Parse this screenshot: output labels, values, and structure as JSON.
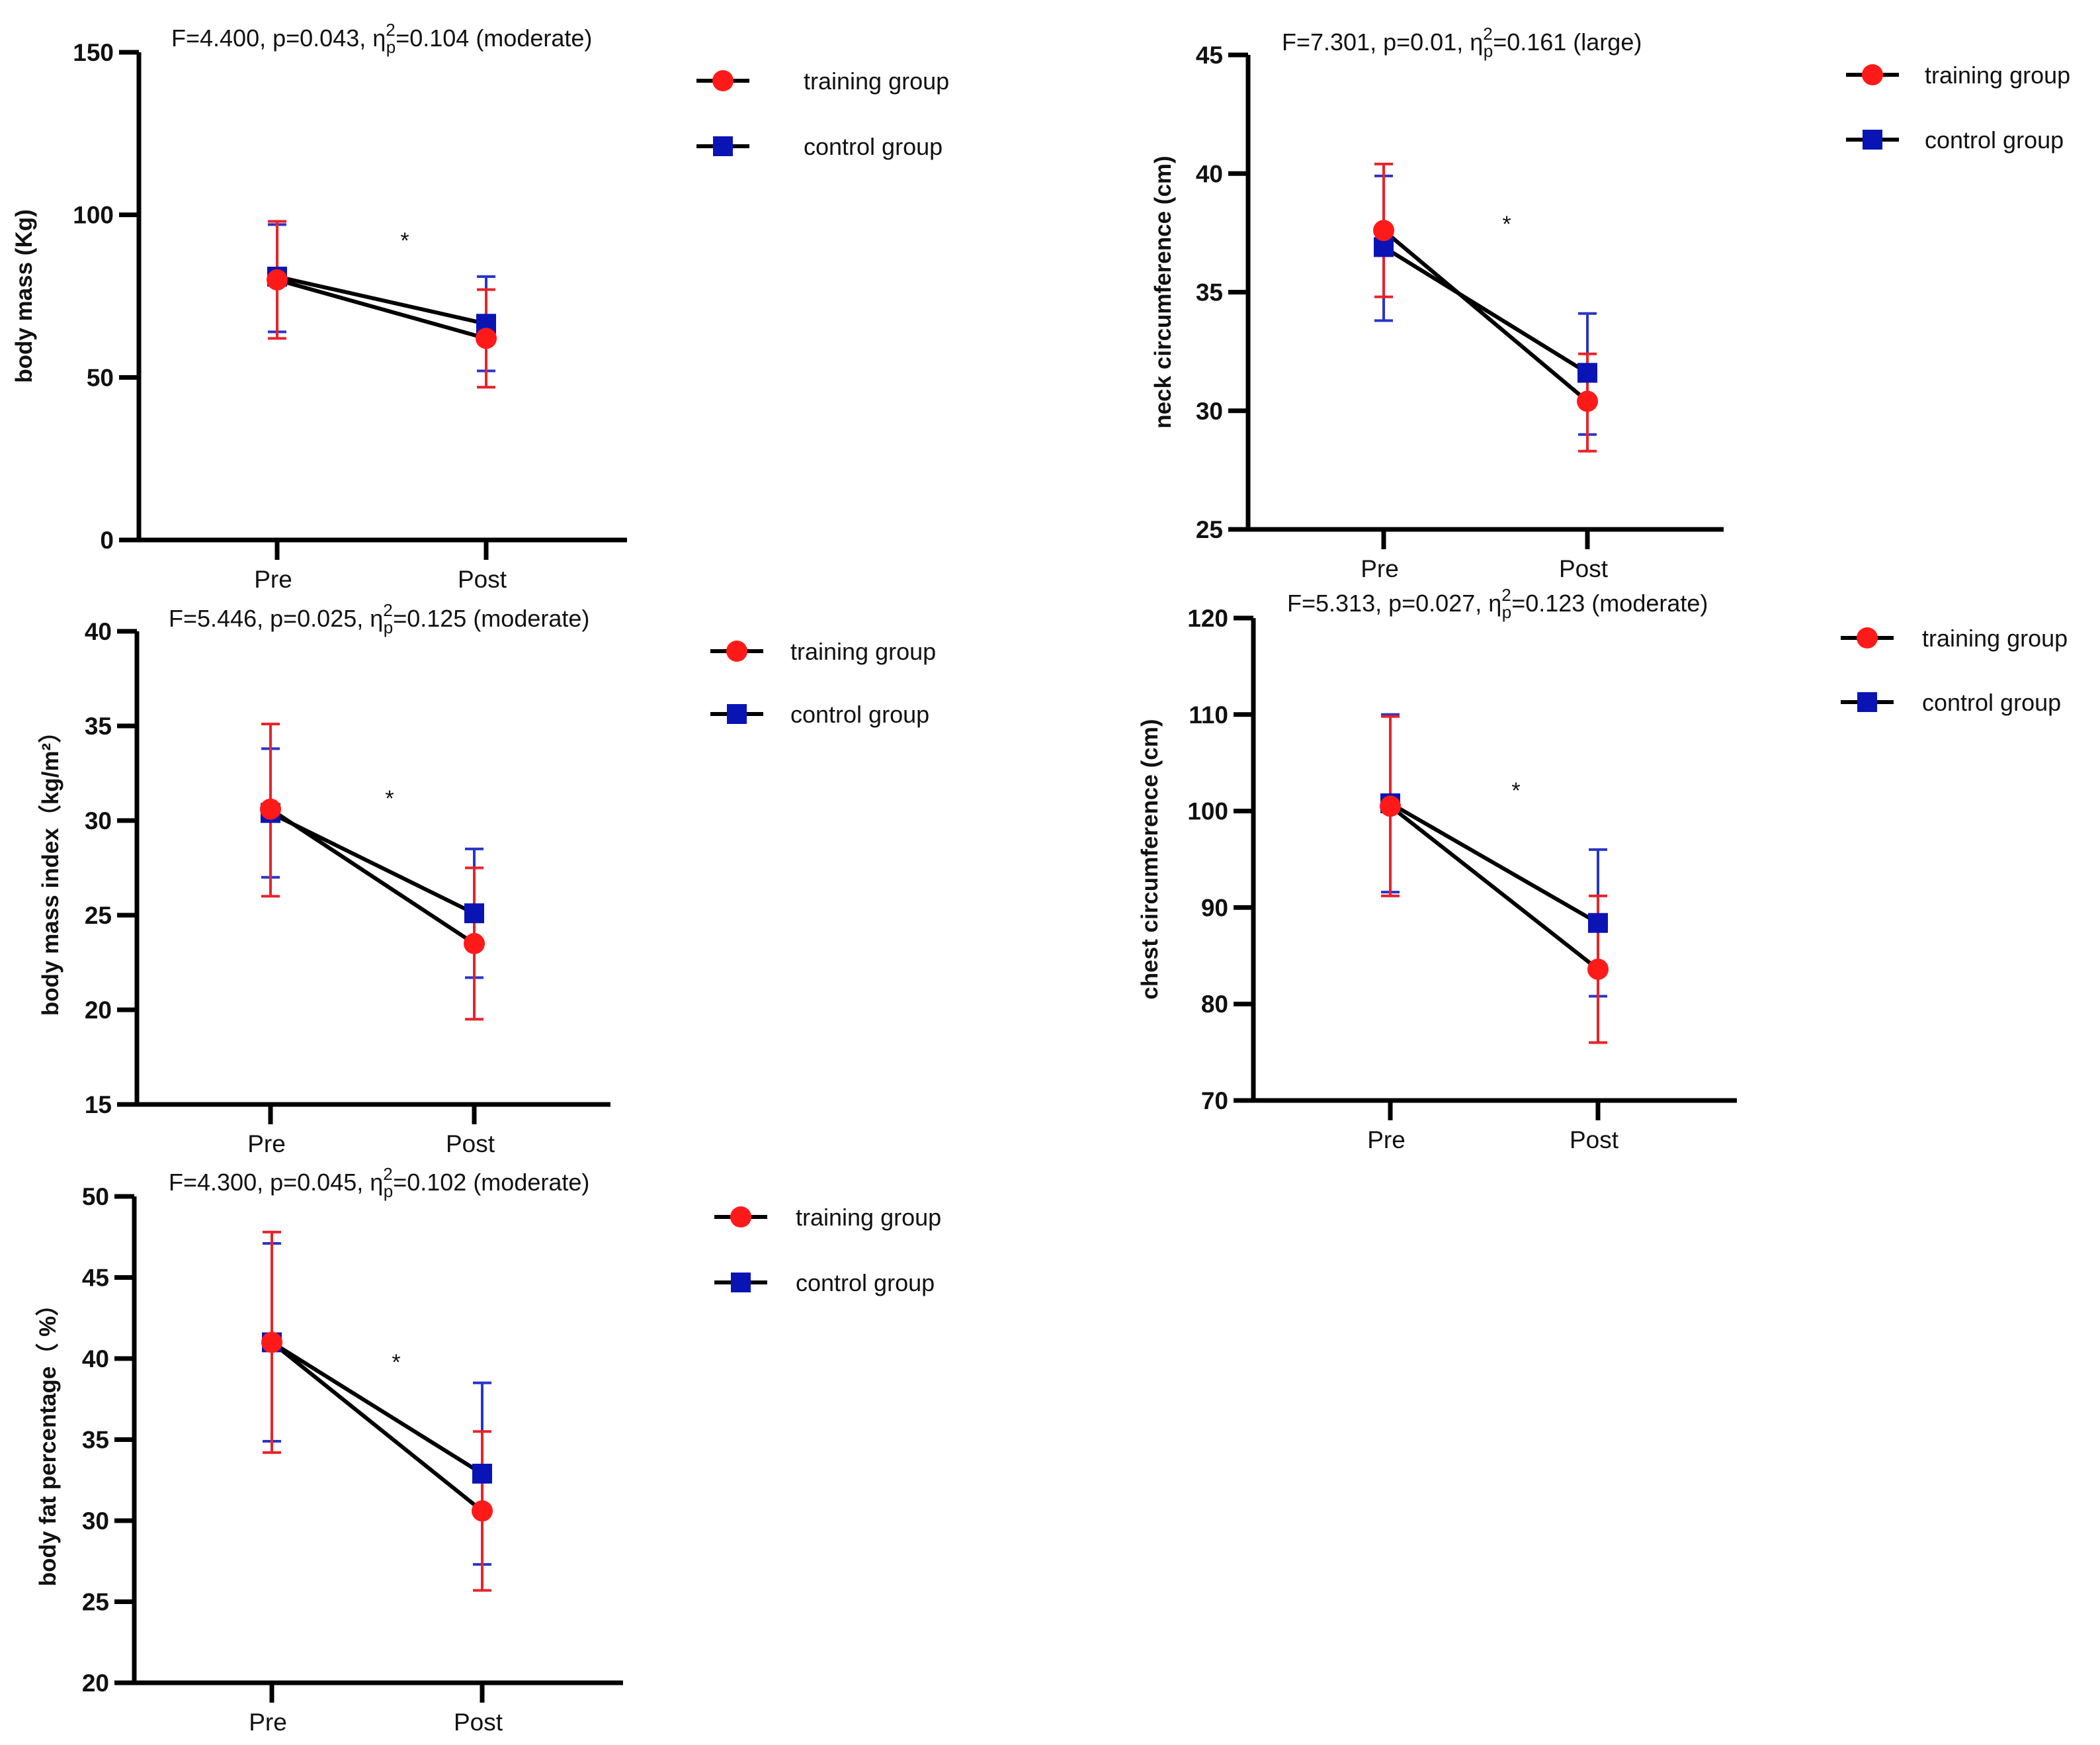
{
  "colors": {
    "training": "#ff1a1a",
    "control": "#0a14b4",
    "training_err": "#e8232a",
    "control_err": "#2a35c8",
    "line": "#000000"
  },
  "chart_data": [
    {
      "type": "line",
      "title": {
        "prefix": "F=4.400, p=0.043, η",
        "sup": "2",
        "sub": "p",
        "suffix": "=0.104 (moderate)"
      },
      "ylabel": "body mass (Kg)",
      "categories": [
        "Pre",
        "Post"
      ],
      "ylim": [
        0,
        150
      ],
      "yticks": [
        0,
        50,
        100,
        150
      ],
      "annotation": "*",
      "legend": {
        "position": "top-right",
        "entries": [
          "training group",
          "control group"
        ]
      },
      "series": [
        {
          "name": "training group",
          "values": [
            80,
            62
          ],
          "err_low": [
            62,
            47
          ],
          "err_high": [
            98,
            77
          ]
        },
        {
          "name": "control group",
          "values": [
            81,
            66.5
          ],
          "err_low": [
            64,
            52
          ],
          "err_high": [
            97,
            81
          ]
        }
      ]
    },
    {
      "type": "line",
      "title": {
        "prefix": "F=7.301, p=0.01, η",
        "sup": "2",
        "sub": "p",
        "suffix": "=0.161 (large)"
      },
      "ylabel": "neck circumference (cm)",
      "categories": [
        "Pre",
        "Post"
      ],
      "ylim": [
        25,
        45
      ],
      "yticks": [
        25,
        30,
        35,
        40,
        45
      ],
      "annotation": "*",
      "legend": {
        "position": "top-right",
        "entries": [
          "training group",
          "control group"
        ]
      },
      "series": [
        {
          "name": "training group",
          "values": [
            37.6,
            30.4
          ],
          "err_low": [
            34.8,
            28.3
          ],
          "err_high": [
            40.4,
            32.4
          ]
        },
        {
          "name": "control group",
          "values": [
            36.9,
            31.6
          ],
          "err_low": [
            33.8,
            29.0
          ],
          "err_high": [
            39.9,
            34.1
          ]
        }
      ]
    },
    {
      "type": "line",
      "title": {
        "prefix": "F=5.446, p=0.025, η",
        "sup": "2",
        "sub": "p",
        "suffix": "=0.125 (moderate)"
      },
      "ylabel": "body mass index（kg/m²）",
      "categories": [
        "Pre",
        "Post"
      ],
      "ylim": [
        15,
        40
      ],
      "yticks": [
        15,
        20,
        25,
        30,
        35,
        40
      ],
      "annotation": "*",
      "legend": {
        "position": "top-right",
        "entries": [
          "training group",
          "control group"
        ]
      },
      "series": [
        {
          "name": "training group",
          "values": [
            30.6,
            23.5
          ],
          "err_low": [
            26.0,
            19.5
          ],
          "err_high": [
            35.1,
            27.5
          ]
        },
        {
          "name": "control group",
          "values": [
            30.4,
            25.1
          ],
          "err_low": [
            27.0,
            21.7
          ],
          "err_high": [
            33.8,
            28.5
          ]
        }
      ]
    },
    {
      "type": "line",
      "title": {
        "prefix": "F=5.313, p=0.027, η",
        "sup": "2",
        "sub": "p",
        "suffix": "=0.123 (moderate)"
      },
      "ylabel": "chest circumference (cm)",
      "categories": [
        "Pre",
        "Post"
      ],
      "ylim": [
        70,
        120
      ],
      "yticks": [
        70,
        80,
        90,
        100,
        110,
        120
      ],
      "annotation": "*",
      "legend": {
        "position": "top-right",
        "entries": [
          "training group",
          "control group"
        ]
      },
      "series": [
        {
          "name": "training group",
          "values": [
            100.5,
            83.6
          ],
          "err_low": [
            91.2,
            76.0
          ],
          "err_high": [
            109.8,
            91.2
          ]
        },
        {
          "name": "control group",
          "values": [
            100.8,
            88.4
          ],
          "err_low": [
            91.6,
            80.8
          ],
          "err_high": [
            110.0,
            96.0
          ]
        }
      ]
    },
    {
      "type": "line",
      "title": {
        "prefix": "F=4.300, p=0.045, η",
        "sup": "2",
        "sub": "p",
        "suffix": "=0.102 (moderate)"
      },
      "ylabel": "body fat percentage（ %）",
      "categories": [
        "Pre",
        "Post"
      ],
      "ylim": [
        20,
        50
      ],
      "yticks": [
        20,
        25,
        30,
        35,
        40,
        45,
        50
      ],
      "annotation": "*",
      "legend": {
        "position": "top-right",
        "entries": [
          "training group",
          "control group"
        ]
      },
      "series": [
        {
          "name": "training group",
          "values": [
            41.0,
            30.6
          ],
          "err_low": [
            34.2,
            25.7
          ],
          "err_high": [
            47.8,
            35.5
          ]
        },
        {
          "name": "control group",
          "values": [
            41.0,
            32.9
          ],
          "err_low": [
            34.9,
            27.3
          ],
          "err_high": [
            47.1,
            38.5
          ]
        }
      ]
    }
  ]
}
